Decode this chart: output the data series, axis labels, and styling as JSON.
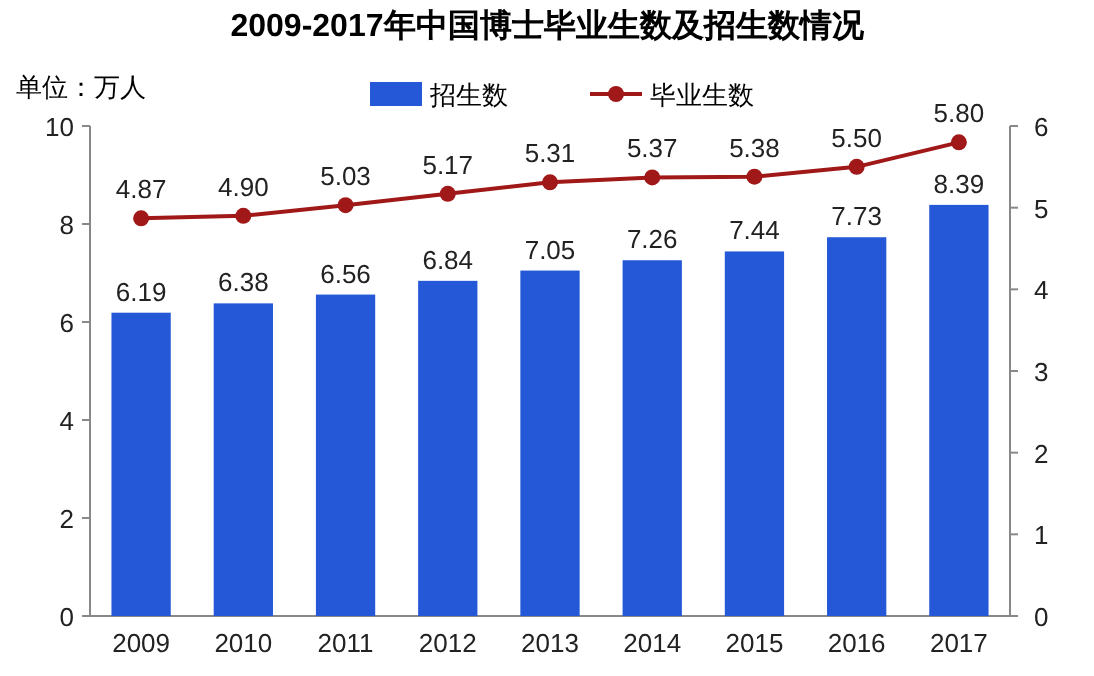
{
  "chart_data": {
    "type": "bar",
    "title": "2009-2017年中国博士毕业生数及招生数情况",
    "annotations": [
      "单位：万人"
    ],
    "categories": [
      "2009",
      "2010",
      "2011",
      "2012",
      "2013",
      "2014",
      "2015",
      "2016",
      "2017"
    ],
    "series": [
      {
        "name": "招生数",
        "color": "#2458d6",
        "values": [
          6.19,
          6.38,
          6.56,
          6.84,
          7.05,
          7.26,
          7.44,
          7.73,
          8.39
        ]
      },
      {
        "name": "毕业生数",
        "type": "line",
        "axis": "y2",
        "color": "#a01818",
        "values": [
          4.87,
          4.9,
          5.03,
          5.17,
          5.31,
          5.37,
          5.38,
          5.5,
          5.8
        ],
        "value_labels": [
          "4.87",
          "4.90",
          "5.03",
          "5.17",
          "5.31",
          "5.37",
          "5.38",
          "5.50",
          "5.80"
        ]
      }
    ],
    "ylim": [
      0,
      10
    ],
    "yticks": [
      0,
      2,
      4,
      6,
      8,
      10
    ],
    "y2lim": [
      0,
      6
    ],
    "y2ticks": [
      0,
      1,
      2,
      3,
      4,
      5,
      6
    ],
    "data_labels": true,
    "legend": "top",
    "marker": "circle"
  }
}
